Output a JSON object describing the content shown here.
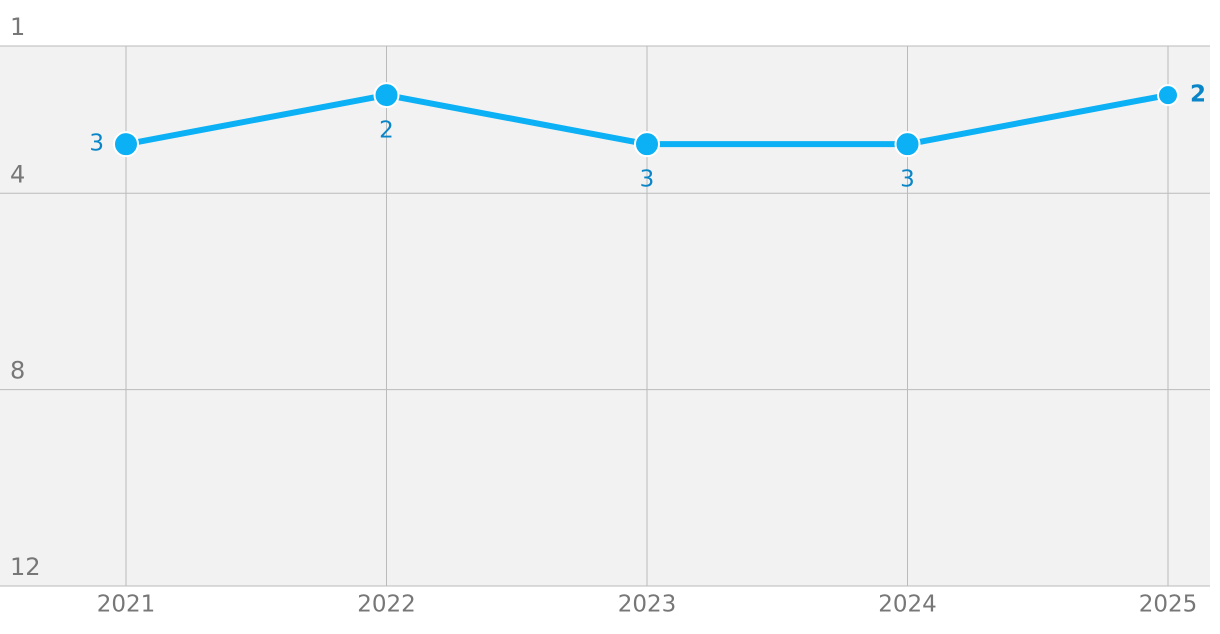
{
  "chart_data": {
    "type": "line",
    "categories": [
      "2021",
      "2022",
      "2023",
      "2024",
      "2025"
    ],
    "series": [
      {
        "values": [
          3,
          2,
          3,
          3,
          2
        ],
        "color": "#0cb0f5"
      }
    ],
    "ylim": [
      1,
      12
    ],
    "yticks": [
      1,
      4,
      8,
      12
    ],
    "y_inverted": true,
    "grid": true
  }
}
